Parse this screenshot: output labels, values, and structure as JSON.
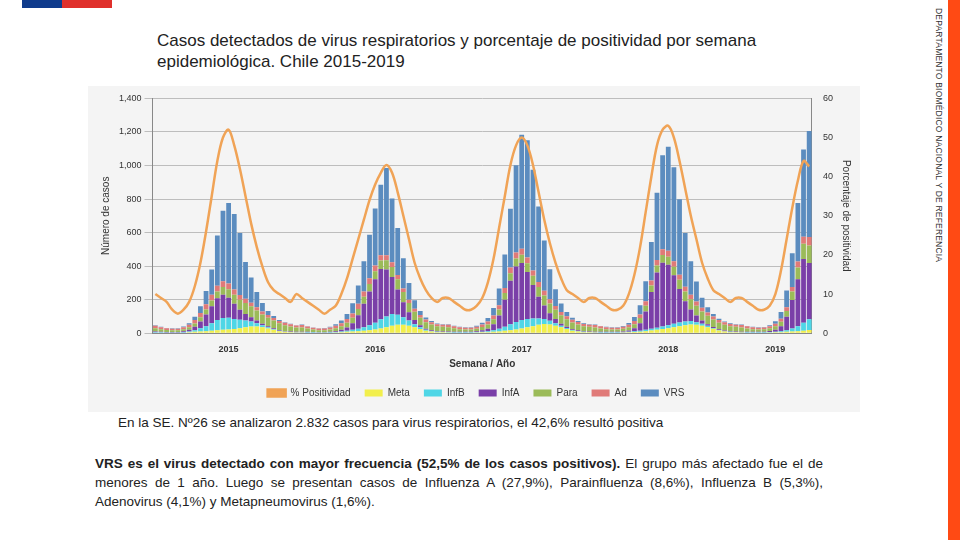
{
  "slide": {
    "side_label": "DEPARTAMENTO BIOMÉDICO NACIONAL Y DE REFERENCIA"
  },
  "chart_data": {
    "type": "bar",
    "title": "Casos detectados de virus respiratorios y porcentaje de positividad por semana epidemiológica. Chile 2015-2019",
    "x_label": "Semana / Año",
    "y_label": "Número de casos",
    "y2_label": "Porcentaje de positividad",
    "annotations": [
      "En la SE. Nº26 se analizaron 2.832 casos para virus respiratorios, el 42,6% resultó positiva",
      "VRS es el virus detectado con mayor frecuencia (52,5% de los casos positivos).",
      "El grupo más afectado fue el de menores de 1 año. Luego se presentan casos de Influenza A (27,9%), Parainfluenza (8,6%), Influenza B (5,3%), Adenovirus (4,1%) y Metapneumovirus (1,6%)."
    ],
    "stacked": true,
    "grid": true,
    "legend": "bottom",
    "ylim": [
      0,
      1400
    ],
    "yticks": [
      0,
      200,
      400,
      600,
      800,
      1000,
      1200,
      1400
    ],
    "y2lim": [
      0,
      60
    ],
    "y2ticks": [
      0,
      10,
      20,
      30,
      40,
      50,
      60
    ],
    "categories": [
      null,
      null,
      null,
      null,
      null,
      null,
      null,
      null,
      null,
      null,
      null,
      null,
      null,
      "2015",
      null,
      null,
      null,
      null,
      null,
      null,
      null,
      null,
      null,
      null,
      null,
      null,
      null,
      null,
      null,
      null,
      null,
      null,
      null,
      null,
      null,
      null,
      null,
      null,
      null,
      "2016",
      null,
      null,
      null,
      null,
      null,
      null,
      null,
      null,
      null,
      null,
      null,
      null,
      null,
      null,
      null,
      null,
      null,
      null,
      null,
      null,
      null,
      null,
      null,
      null,
      null,
      "2017",
      null,
      null,
      null,
      null,
      null,
      null,
      null,
      null,
      null,
      null,
      null,
      null,
      null,
      null,
      null,
      null,
      null,
      null,
      null,
      null,
      null,
      null,
      null,
      null,
      null,
      "2018",
      null,
      null,
      null,
      null,
      null,
      null,
      null,
      null,
      null,
      null,
      null,
      null,
      null,
      null,
      null,
      null,
      null,
      null,
      "2019",
      null,
      null,
      null,
      null,
      null,
      null
    ],
    "series": [
      {
        "name": "Meta",
        "type": "bar",
        "color": "#f2ef4c",
        "values": [
          3,
          3,
          2,
          2,
          2,
          3,
          5,
          8,
          10,
          12,
          15,
          18,
          20,
          22,
          25,
          30,
          35,
          40,
          40,
          35,
          28,
          20,
          12,
          8,
          5,
          4,
          4,
          3,
          3,
          2,
          2,
          3,
          4,
          6,
          8,
          10,
          12,
          15,
          18,
          22,
          28,
          35,
          45,
          50,
          50,
          45,
          35,
          25,
          15,
          10,
          6,
          5,
          4,
          3,
          3,
          3,
          3,
          4,
          5,
          6,
          8,
          10,
          14,
          18,
          22,
          28,
          35,
          42,
          50,
          55,
          52,
          45,
          35,
          25,
          15,
          10,
          6,
          5,
          4,
          3,
          3,
          3,
          3,
          4,
          5,
          7,
          9,
          12,
          16,
          20,
          25,
          30,
          36,
          42,
          48,
          52,
          50,
          44,
          36,
          26,
          16,
          10,
          6,
          5,
          4,
          3,
          3,
          3,
          3,
          4,
          5,
          6,
          8,
          10,
          12,
          15,
          19
        ]
      },
      {
        "name": "InfB",
        "type": "bar",
        "color": "#4fd6e6",
        "values": [
          2,
          2,
          2,
          2,
          2,
          3,
          5,
          10,
          20,
          30,
          45,
          60,
          70,
          70,
          60,
          50,
          40,
          30,
          20,
          12,
          8,
          5,
          3,
          2,
          2,
          2,
          2,
          2,
          2,
          2,
          2,
          2,
          3,
          4,
          6,
          10,
          15,
          20,
          30,
          40,
          55,
          65,
          70,
          60,
          45,
          30,
          18,
          10,
          5,
          3,
          2,
          2,
          3,
          3,
          2,
          2,
          2,
          3,
          4,
          6,
          10,
          16,
          25,
          35,
          45,
          50,
          50,
          45,
          38,
          30,
          22,
          15,
          10,
          6,
          4,
          3,
          2,
          2,
          2,
          2,
          2,
          2,
          2,
          2,
          3,
          4,
          6,
          8,
          10,
          12,
          15,
          18,
          20,
          22,
          22,
          20,
          16,
          12,
          8,
          5,
          3,
          2,
          2,
          2,
          2,
          2,
          2,
          2,
          2,
          3,
          4,
          6,
          10,
          18,
          30,
          48,
          64
        ]
      },
      {
        "name": "InfA",
        "type": "bar",
        "color": "#7a3fa8",
        "values": [
          5,
          4,
          3,
          3,
          3,
          5,
          10,
          20,
          40,
          70,
          100,
          130,
          140,
          120,
          90,
          60,
          40,
          25,
          15,
          10,
          6,
          5,
          4,
          3,
          3,
          3,
          3,
          3,
          2,
          2,
          2,
          3,
          5,
          10,
          20,
          40,
          80,
          140,
          200,
          260,
          300,
          280,
          220,
          150,
          90,
          50,
          25,
          12,
          6,
          4,
          3,
          3,
          3,
          3,
          3,
          3,
          3,
          4,
          8,
          15,
          35,
          80,
          160,
          260,
          330,
          340,
          280,
          200,
          130,
          80,
          45,
          25,
          12,
          7,
          5,
          4,
          3,
          3,
          3,
          3,
          3,
          3,
          3,
          4,
          8,
          18,
          45,
          110,
          220,
          330,
          380,
          360,
          290,
          200,
          120,
          70,
          40,
          20,
          10,
          6,
          5,
          4,
          3,
          3,
          3,
          3,
          3,
          3,
          4,
          6,
          12,
          30,
          80,
          170,
          280,
          380,
          336
        ]
      },
      {
        "name": "Para",
        "type": "bar",
        "color": "#9bbb59",
        "values": [
          20,
          15,
          12,
          10,
          10,
          12,
          15,
          20,
          25,
          30,
          35,
          40,
          45,
          50,
          55,
          60,
          65,
          65,
          60,
          55,
          50,
          45,
          40,
          35,
          30,
          25,
          25,
          20,
          15,
          12,
          12,
          14,
          18,
          22,
          28,
          32,
          38,
          42,
          45,
          48,
          50,
          55,
          60,
          62,
          60,
          55,
          50,
          45,
          40,
          35,
          30,
          28,
          25,
          20,
          16,
          14,
          14,
          16,
          20,
          25,
          30,
          35,
          40,
          45,
          48,
          50,
          52,
          55,
          58,
          60,
          58,
          55,
          50,
          45,
          40,
          35,
          30,
          28,
          25,
          20,
          16,
          14,
          14,
          16,
          20,
          25,
          30,
          34,
          38,
          42,
          46,
          48,
          50,
          54,
          58,
          60,
          58,
          54,
          50,
          44,
          38,
          34,
          30,
          28,
          25,
          20,
          16,
          14,
          14,
          16,
          20,
          26,
          34,
          50,
          70,
          90,
          104
        ]
      },
      {
        "name": "Ad",
        "type": "bar",
        "color": "#e07a78",
        "values": [
          15,
          12,
          10,
          10,
          10,
          12,
          15,
          20,
          25,
          30,
          35,
          35,
          35,
          35,
          30,
          28,
          25,
          22,
          20,
          18,
          16,
          15,
          14,
          14,
          13,
          12,
          15,
          12,
          10,
          10,
          10,
          12,
          15,
          18,
          22,
          26,
          30,
          32,
          34,
          34,
          32,
          30,
          28,
          25,
          22,
          20,
          18,
          16,
          15,
          14,
          13,
          12,
          15,
          13,
          12,
          11,
          11,
          12,
          15,
          18,
          22,
          26,
          30,
          34,
          36,
          36,
          34,
          32,
          30,
          28,
          25,
          22,
          20,
          18,
          16,
          15,
          14,
          13,
          15,
          13,
          12,
          11,
          11,
          12,
          15,
          18,
          22,
          26,
          30,
          33,
          35,
          35,
          33,
          31,
          29,
          27,
          25,
          22,
          20,
          18,
          16,
          15,
          14,
          13,
          15,
          13,
          12,
          11,
          11,
          12,
          15,
          18,
          22,
          28,
          35,
          42,
          50
        ]
      },
      {
        "name": "VRS",
        "type": "bar",
        "color": "#5b8cbf",
        "values": [
          3,
          2,
          2,
          2,
          3,
          5,
          10,
          20,
          40,
          80,
          150,
          300,
          420,
          480,
          450,
          370,
          220,
          150,
          90,
          50,
          25,
          12,
          6,
          4,
          3,
          2,
          3,
          2,
          2,
          2,
          3,
          5,
          8,
          15,
          30,
          60,
          110,
          180,
          260,
          340,
          420,
          520,
          380,
          280,
          180,
          100,
          50,
          25,
          12,
          6,
          4,
          3,
          3,
          2,
          2,
          2,
          3,
          5,
          10,
          20,
          45,
          100,
          200,
          350,
          520,
          680,
          700,
          600,
          450,
          300,
          180,
          100,
          50,
          25,
          12,
          6,
          4,
          3,
          3,
          2,
          2,
          2,
          3,
          5,
          10,
          25,
          55,
          120,
          230,
          400,
          560,
          620,
          560,
          450,
          320,
          200,
          120,
          60,
          30,
          15,
          8,
          5,
          4,
          3,
          3,
          2,
          2,
          2,
          3,
          6,
          15,
          40,
          100,
          200,
          350,
          520,
          633
        ]
      },
      {
        "name": "% Positividad",
        "type": "line",
        "axis": "y2",
        "color": "#f0a356",
        "values": [
          10,
          9,
          8,
          6,
          5,
          6,
          8,
          12,
          18,
          26,
          35,
          44,
          50,
          52,
          48,
          42,
          35,
          28,
          22,
          17,
          13,
          11,
          10,
          9,
          8,
          10,
          9,
          8,
          7,
          6,
          5,
          6,
          7,
          10,
          14,
          19,
          24,
          29,
          34,
          38,
          41,
          43,
          41,
          36,
          30,
          24,
          18,
          14,
          11,
          9,
          8,
          9,
          9,
          8,
          7,
          6,
          6,
          7,
          9,
          13,
          19,
          27,
          35,
          43,
          48,
          50,
          48,
          43,
          36,
          29,
          23,
          18,
          14,
          11,
          10,
          9,
          8,
          9,
          9,
          8,
          7,
          6,
          6,
          7,
          10,
          15,
          22,
          31,
          40,
          48,
          52,
          53,
          50,
          44,
          37,
          30,
          24,
          18,
          14,
          11,
          10,
          9,
          8,
          9,
          9,
          8,
          7,
          6,
          6,
          7,
          10,
          16,
          24,
          32,
          39,
          44,
          42.6
        ]
      }
    ]
  }
}
